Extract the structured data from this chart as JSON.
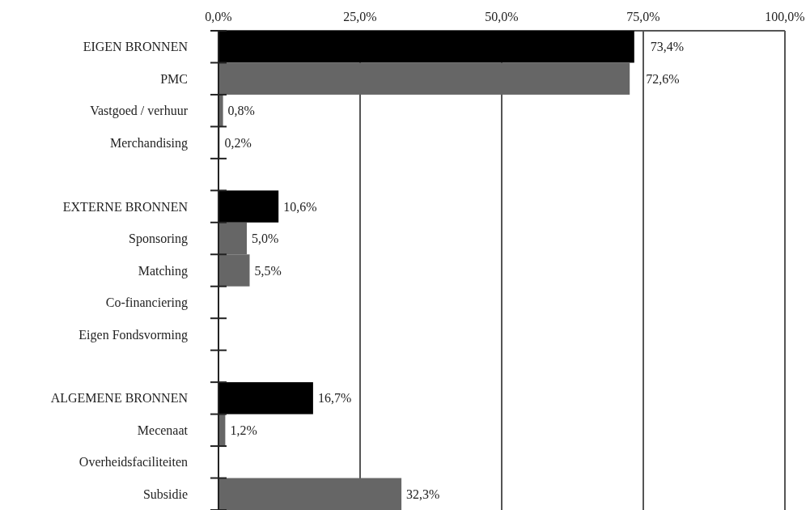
{
  "chart_data": {
    "type": "bar",
    "orientation": "horizontal",
    "categories": [
      "EIGEN BRONNEN",
      "PMC",
      "Vastgoed / verhuur",
      "Merchandising",
      null,
      "EXTERNE BRONNEN",
      "Sponsoring",
      "Matching",
      "Co-financiering",
      "Eigen Fondsvorming",
      null,
      "ALGEMENE BRONNEN",
      "Mecenaat",
      "Overheidsfaciliteiten",
      "Subsidie"
    ],
    "values": [
      73.4,
      72.6,
      0.8,
      0.2,
      null,
      10.6,
      5.0,
      5.5,
      null,
      null,
      null,
      16.7,
      1.2,
      null,
      32.3
    ],
    "value_labels": [
      "73,4%",
      "72,6%",
      "0,8%",
      "0,2%",
      null,
      "10,6%",
      "5,0%",
      "5,5%",
      null,
      null,
      null,
      "16,7%",
      "1,2%",
      null,
      "32,3%"
    ],
    "colors": [
      "#000000",
      "#666666",
      "#666666",
      "#666666",
      null,
      "#000000",
      "#666666",
      "#666666",
      null,
      null,
      null,
      "#000000",
      "#666666",
      null,
      "#666666"
    ],
    "xlim": [
      0,
      100
    ],
    "xticks": [
      {
        "value": 0,
        "label": "0,0%"
      },
      {
        "value": 25,
        "label": "25,0%"
      },
      {
        "value": 50,
        "label": "50,0%"
      },
      {
        "value": 75,
        "label": "75,0%"
      },
      {
        "value": 100,
        "label": "100,0%"
      }
    ],
    "grid": "x"
  }
}
